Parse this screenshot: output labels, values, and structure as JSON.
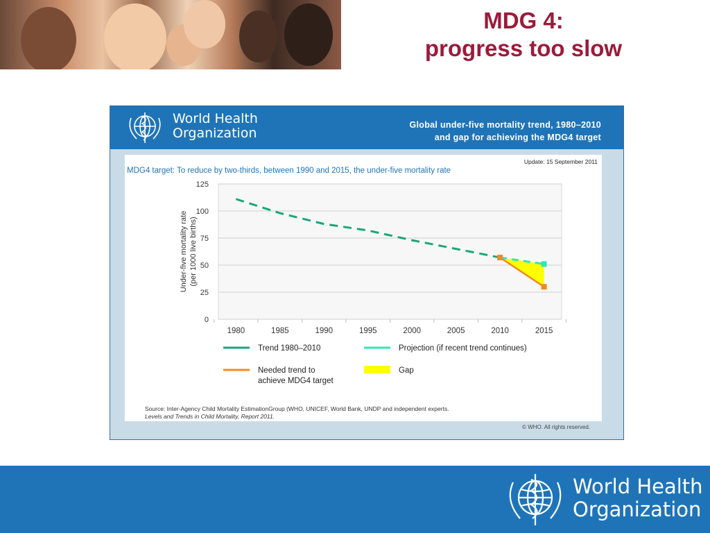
{
  "slide": {
    "title_line1": "MDG 4:",
    "title_line2": "progress too slow"
  },
  "panel": {
    "org_line1": "World Health",
    "org_line2": "Organization",
    "head_title_line1": "Global under-five mortality trend, 1980–2010",
    "head_title_line2": "and gap for achieving the MDG4 target",
    "update": "Update: 15 September 2011",
    "target_text": "MDG4 target: To reduce by two-thirds, between 1990 and 2015, the under-five mortality rate",
    "source_line1": "Source: Inter-Agency Child Mortality EstimationGroup (WHO, UNICEF, World Bank, UNDP and independent experts.",
    "source_line2": "Levels and Trends in Child Mortality, Report 2011.",
    "copyright": "© WHO. All rights reserved."
  },
  "footer": {
    "org_line1": "World Health",
    "org_line2": "Organization"
  },
  "colors": {
    "title": "#9b1b3a",
    "who_blue": "#1f74b8",
    "trend": "#1aa67a",
    "projection": "#2ee8b8",
    "needed": "#f08c1e",
    "gap": "#ffff00"
  },
  "chart_data": {
    "type": "line",
    "ylabel_line1": "Under-five mortality rate",
    "ylabel_line2": "(per 1000 live births)",
    "xlabel": "",
    "x_ticks": [
      1980,
      1985,
      1990,
      1995,
      2000,
      2005,
      2010,
      2015
    ],
    "y_ticks": [
      0,
      25,
      50,
      75,
      100,
      125
    ],
    "xlim": [
      1978,
      2017
    ],
    "ylim": [
      0,
      125
    ],
    "grid": true,
    "series": [
      {
        "name": "Trend 1980–2010",
        "style": "dashed",
        "x": [
          1980,
          1985,
          1990,
          1995,
          2000,
          2005,
          2010
        ],
        "y": [
          111,
          98,
          88,
          82,
          73,
          65,
          57
        ]
      },
      {
        "name": "Projection (if recent trend continues)",
        "style": "dashed",
        "x": [
          2010,
          2015
        ],
        "y": [
          57,
          51
        ]
      },
      {
        "name": "Needed trend to achieve MDG4 target",
        "style": "solid",
        "x": [
          2010,
          2015
        ],
        "y": [
          57,
          30
        ]
      }
    ],
    "gap": {
      "name": "Gap",
      "points": [
        [
          2010,
          57
        ],
        [
          2015,
          51
        ],
        [
          2015,
          30
        ]
      ]
    },
    "legend": [
      {
        "key": "trend",
        "label_lines": [
          "Trend 1980–2010"
        ]
      },
      {
        "key": "projection",
        "label_lines": [
          "Projection (if recent trend continues)"
        ]
      },
      {
        "key": "needed",
        "label_lines": [
          "Needed trend to",
          "achieve MDG4 target"
        ]
      },
      {
        "key": "gap",
        "label_lines": [
          "Gap"
        ]
      }
    ],
    "legend_position": "bottom"
  }
}
